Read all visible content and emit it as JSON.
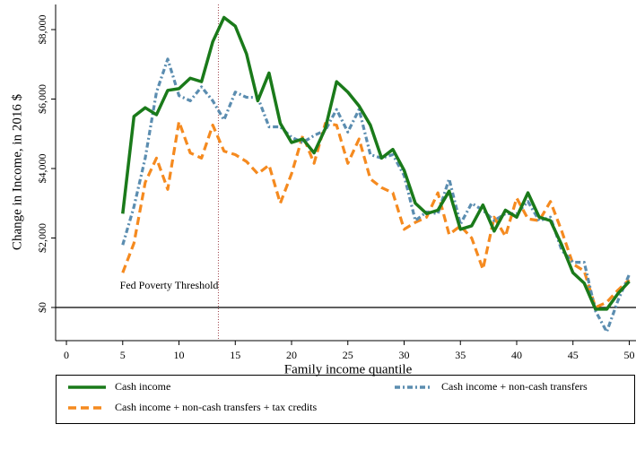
{
  "chart_data": {
    "type": "line",
    "x_label": "Family income quantile",
    "y_label": "Change in Income, in 2016 $",
    "x": [
      5,
      6,
      7,
      8,
      9,
      10,
      11,
      12,
      13,
      14,
      15,
      16,
      17,
      18,
      19,
      20,
      21,
      22,
      23,
      24,
      25,
      26,
      27,
      28,
      29,
      30,
      31,
      32,
      33,
      34,
      35,
      36,
      37,
      38,
      39,
      40,
      41,
      42,
      43,
      44,
      45,
      46,
      47,
      48,
      49,
      50
    ],
    "series": [
      {
        "name": "Cash income",
        "color": "#1a7a1a",
        "style": "solid",
        "values": [
          2700,
          5500,
          5750,
          5550,
          6250,
          6300,
          6600,
          6500,
          7650,
          8350,
          8100,
          7300,
          5950,
          6750,
          5300,
          4750,
          4850,
          4450,
          5150,
          6500,
          6200,
          5800,
          5250,
          4300,
          4550,
          3950,
          3000,
          2700,
          2800,
          3350,
          2250,
          2350,
          2950,
          2200,
          2800,
          2600,
          3300,
          2600,
          2500,
          1800,
          1000,
          700,
          -50,
          -50,
          400,
          750
        ]
      },
      {
        "name": "Cash income + non-cash transfers",
        "color": "#5b8db0",
        "style": "dashdot",
        "values": [
          1800,
          2900,
          4300,
          6200,
          7150,
          6100,
          5950,
          6350,
          5950,
          5400,
          6200,
          6050,
          6050,
          5200,
          5200,
          4900,
          4750,
          4950,
          5100,
          5700,
          5050,
          5700,
          4400,
          4300,
          4400,
          3800,
          2500,
          2750,
          2700,
          3700,
          2400,
          3000,
          2800,
          2500,
          2700,
          2700,
          3050,
          2500,
          2600,
          1650,
          1300,
          1300,
          -100,
          -700,
          200,
          950
        ]
      },
      {
        "name": "Cash income + non-cash transfers + tax credits",
        "color": "#f58a1f",
        "style": "dash",
        "values": [
          1000,
          1850,
          3600,
          4300,
          3400,
          5350,
          4450,
          4300,
          5250,
          4500,
          4400,
          4200,
          3850,
          4100,
          3000,
          3850,
          4950,
          4150,
          5300,
          5250,
          4150,
          4850,
          3700,
          3450,
          3300,
          2250,
          2450,
          2600,
          3300,
          2100,
          2350,
          2000,
          1100,
          2600,
          2050,
          3150,
          2550,
          2500,
          3050,
          2200,
          1250,
          1050,
          0,
          150,
          500,
          800
        ]
      }
    ],
    "xlim": [
      -0.96,
      50.6
    ],
    "xticks": [
      0,
      5,
      10,
      15,
      20,
      25,
      30,
      35,
      40,
      45,
      50
    ],
    "ylim": [
      -955,
      8723
    ],
    "yticks": [
      {
        "value": 0,
        "label": "$0"
      },
      {
        "value": 2000,
        "label": "$2,000"
      },
      {
        "value": 4000,
        "label": "$4,000"
      },
      {
        "value": 6000,
        "label": "$6,000"
      },
      {
        "value": 8000,
        "label": "$8,000"
      }
    ],
    "hline": 0,
    "annotation": {
      "x": 13.5,
      "text": "Fed Poverty Threshold",
      "color": "#a0444c"
    }
  }
}
